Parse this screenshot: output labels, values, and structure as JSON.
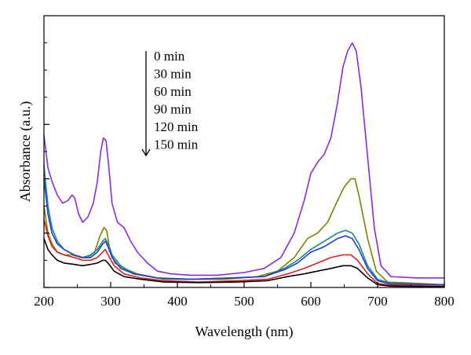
{
  "chart_data": {
    "type": "line",
    "title": "",
    "xlabel": "Wavelength (nm)",
    "ylabel": "Absorbance (a.u.)",
    "xlim": [
      200,
      800
    ],
    "ylim": [
      0,
      1.0
    ],
    "x_ticks": [
      200,
      300,
      400,
      500,
      600,
      700,
      800
    ],
    "x_tick_labels": [
      "200",
      "300",
      "400",
      "500",
      "600",
      "700",
      "800"
    ],
    "y_major_ticks": [
      0,
      0.2,
      0.4,
      0.6,
      0.8,
      1.0
    ],
    "y_tick_labels_shown": false,
    "grid": false,
    "legend": {
      "placement": "top-center",
      "entries": [
        "0 min",
        "30 min",
        "60 min",
        "90 min",
        "120 min",
        "150 min"
      ],
      "arrow_direction": "down"
    },
    "series": [
      {
        "name": "0 min",
        "color": "#8a2be2",
        "points": [
          [
            200,
            0.56
          ],
          [
            206,
            0.44
          ],
          [
            212,
            0.39
          ],
          [
            220,
            0.34
          ],
          [
            228,
            0.31
          ],
          [
            236,
            0.32
          ],
          [
            242,
            0.34
          ],
          [
            246,
            0.33
          ],
          [
            252,
            0.27
          ],
          [
            258,
            0.24
          ],
          [
            266,
            0.26
          ],
          [
            274,
            0.31
          ],
          [
            280,
            0.39
          ],
          [
            285,
            0.5
          ],
          [
            289,
            0.55
          ],
          [
            293,
            0.54
          ],
          [
            297,
            0.45
          ],
          [
            302,
            0.31
          ],
          [
            310,
            0.24
          ],
          [
            320,
            0.22
          ],
          [
            330,
            0.17
          ],
          [
            340,
            0.13
          ],
          [
            355,
            0.09
          ],
          [
            370,
            0.06
          ],
          [
            390,
            0.05
          ],
          [
            420,
            0.045
          ],
          [
            460,
            0.045
          ],
          [
            500,
            0.055
          ],
          [
            530,
            0.07
          ],
          [
            555,
            0.11
          ],
          [
            575,
            0.2
          ],
          [
            590,
            0.32
          ],
          [
            600,
            0.42
          ],
          [
            610,
            0.46
          ],
          [
            620,
            0.49
          ],
          [
            630,
            0.55
          ],
          [
            640,
            0.68
          ],
          [
            648,
            0.81
          ],
          [
            655,
            0.87
          ],
          [
            662,
            0.9
          ],
          [
            668,
            0.87
          ],
          [
            675,
            0.74
          ],
          [
            685,
            0.48
          ],
          [
            695,
            0.22
          ],
          [
            705,
            0.08
          ],
          [
            720,
            0.04
          ],
          [
            760,
            0.035
          ],
          [
            800,
            0.035
          ]
        ]
      },
      {
        "name": "30 min",
        "color": "#808000",
        "points": [
          [
            200,
            0.3
          ],
          [
            206,
            0.2
          ],
          [
            212,
            0.16
          ],
          [
            220,
            0.13
          ],
          [
            230,
            0.12
          ],
          [
            242,
            0.12
          ],
          [
            255,
            0.11
          ],
          [
            266,
            0.11
          ],
          [
            276,
            0.13
          ],
          [
            284,
            0.19
          ],
          [
            290,
            0.22
          ],
          [
            294,
            0.21
          ],
          [
            298,
            0.15
          ],
          [
            306,
            0.09
          ],
          [
            320,
            0.07
          ],
          [
            340,
            0.05
          ],
          [
            380,
            0.03
          ],
          [
            420,
            0.03
          ],
          [
            470,
            0.03
          ],
          [
            520,
            0.04
          ],
          [
            550,
            0.06
          ],
          [
            575,
            0.11
          ],
          [
            595,
            0.18
          ],
          [
            610,
            0.2
          ],
          [
            625,
            0.24
          ],
          [
            640,
            0.32
          ],
          [
            650,
            0.37
          ],
          [
            660,
            0.4
          ],
          [
            666,
            0.4
          ],
          [
            672,
            0.34
          ],
          [
            685,
            0.18
          ],
          [
            698,
            0.06
          ],
          [
            715,
            0.02
          ],
          [
            760,
            0.015
          ],
          [
            800,
            0.01
          ]
        ]
      },
      {
        "name": "60 min",
        "color": "#1a8a8a",
        "points": [
          [
            200,
            0.45
          ],
          [
            206,
            0.3
          ],
          [
            212,
            0.22
          ],
          [
            220,
            0.17
          ],
          [
            230,
            0.14
          ],
          [
            245,
            0.12
          ],
          [
            258,
            0.11
          ],
          [
            270,
            0.12
          ],
          [
            280,
            0.14
          ],
          [
            288,
            0.17
          ],
          [
            292,
            0.18
          ],
          [
            296,
            0.16
          ],
          [
            302,
            0.12
          ],
          [
            315,
            0.08
          ],
          [
            335,
            0.05
          ],
          [
            370,
            0.035
          ],
          [
            420,
            0.03
          ],
          [
            480,
            0.035
          ],
          [
            530,
            0.04
          ],
          [
            560,
            0.07
          ],
          [
            580,
            0.1
          ],
          [
            600,
            0.14
          ],
          [
            620,
            0.17
          ],
          [
            640,
            0.2
          ],
          [
            652,
            0.21
          ],
          [
            662,
            0.2
          ],
          [
            672,
            0.16
          ],
          [
            685,
            0.08
          ],
          [
            700,
            0.03
          ],
          [
            720,
            0.015
          ],
          [
            800,
            0.01
          ]
        ]
      },
      {
        "name": "90 min",
        "color": "#1e3fd8",
        "points": [
          [
            200,
            0.4
          ],
          [
            206,
            0.27
          ],
          [
            212,
            0.2
          ],
          [
            220,
            0.16
          ],
          [
            230,
            0.14
          ],
          [
            245,
            0.12
          ],
          [
            258,
            0.11
          ],
          [
            270,
            0.11
          ],
          [
            280,
            0.13
          ],
          [
            288,
            0.16
          ],
          [
            292,
            0.17
          ],
          [
            296,
            0.15
          ],
          [
            302,
            0.11
          ],
          [
            315,
            0.07
          ],
          [
            335,
            0.05
          ],
          [
            370,
            0.035
          ],
          [
            420,
            0.03
          ],
          [
            480,
            0.035
          ],
          [
            530,
            0.04
          ],
          [
            560,
            0.065
          ],
          [
            580,
            0.09
          ],
          [
            600,
            0.13
          ],
          [
            620,
            0.15
          ],
          [
            640,
            0.18
          ],
          [
            652,
            0.19
          ],
          [
            662,
            0.18
          ],
          [
            672,
            0.14
          ],
          [
            685,
            0.07
          ],
          [
            700,
            0.025
          ],
          [
            720,
            0.012
          ],
          [
            800,
            0.01
          ]
        ]
      },
      {
        "name": "120 min",
        "color": "#e02020",
        "points": [
          [
            200,
            0.25
          ],
          [
            206,
            0.19
          ],
          [
            212,
            0.15
          ],
          [
            220,
            0.13
          ],
          [
            230,
            0.12
          ],
          [
            245,
            0.11
          ],
          [
            258,
            0.1
          ],
          [
            270,
            0.1
          ],
          [
            280,
            0.11
          ],
          [
            288,
            0.13
          ],
          [
            292,
            0.14
          ],
          [
            296,
            0.12
          ],
          [
            305,
            0.08
          ],
          [
            320,
            0.05
          ],
          [
            345,
            0.035
          ],
          [
            380,
            0.025
          ],
          [
            430,
            0.02
          ],
          [
            490,
            0.025
          ],
          [
            535,
            0.03
          ],
          [
            565,
            0.05
          ],
          [
            590,
            0.07
          ],
          [
            610,
            0.09
          ],
          [
            630,
            0.11
          ],
          [
            648,
            0.12
          ],
          [
            660,
            0.12
          ],
          [
            670,
            0.1
          ],
          [
            685,
            0.05
          ],
          [
            700,
            0.015
          ],
          [
            720,
            0.008
          ],
          [
            800,
            0.005
          ]
        ]
      },
      {
        "name": "150 min",
        "color": "#000000",
        "points": [
          [
            200,
            0.18
          ],
          [
            206,
            0.14
          ],
          [
            212,
            0.12
          ],
          [
            220,
            0.1
          ],
          [
            230,
            0.09
          ],
          [
            245,
            0.085
          ],
          [
            258,
            0.08
          ],
          [
            270,
            0.085
          ],
          [
            280,
            0.09
          ],
          [
            288,
            0.1
          ],
          [
            292,
            0.1
          ],
          [
            296,
            0.09
          ],
          [
            305,
            0.06
          ],
          [
            320,
            0.04
          ],
          [
            345,
            0.03
          ],
          [
            380,
            0.02
          ],
          [
            430,
            0.018
          ],
          [
            490,
            0.02
          ],
          [
            535,
            0.025
          ],
          [
            565,
            0.04
          ],
          [
            590,
            0.05
          ],
          [
            610,
            0.06
          ],
          [
            630,
            0.07
          ],
          [
            648,
            0.08
          ],
          [
            660,
            0.08
          ],
          [
            670,
            0.07
          ],
          [
            685,
            0.035
          ],
          [
            700,
            0.01
          ],
          [
            720,
            0.005
          ],
          [
            800,
            0.003
          ]
        ]
      }
    ]
  }
}
